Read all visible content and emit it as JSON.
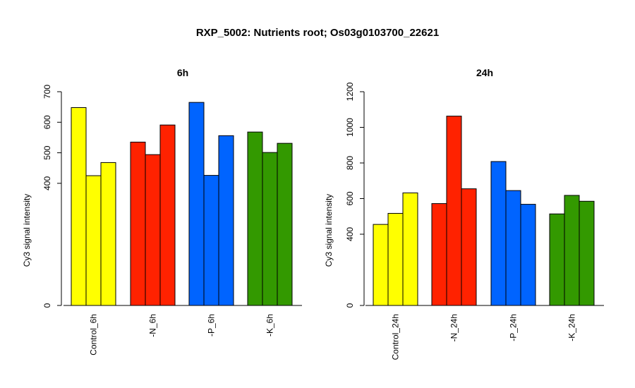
{
  "figure_title": "RXP_5002: Nutrients root; Os03g0103700_22621",
  "colors": {
    "control": "#FFFF00",
    "minus_n": "#FF2200",
    "minus_p": "#0064FF",
    "minus_k": "#339900"
  },
  "chart_data": [
    {
      "type": "bar",
      "title": "6h",
      "ylabel": "Cy3 signal intensity",
      "xlabel": "",
      "ylim": [
        0,
        700
      ],
      "yticks": [
        0,
        400,
        500,
        600,
        700
      ],
      "categories": [
        "Control_6h",
        "-N_6h",
        "-P_6h",
        "-K_6h"
      ],
      "category_colors": [
        "#FFFF00",
        "#FF2200",
        "#0064FF",
        "#339900"
      ],
      "groups": [
        {
          "category": "Control_6h",
          "values": [
            648,
            425,
            468
          ]
        },
        {
          "category": "-N_6h",
          "values": [
            535,
            494,
            591
          ]
        },
        {
          "category": "-P_6h",
          "values": [
            665,
            426,
            556
          ]
        },
        {
          "category": "-K_6h",
          "values": [
            568,
            501,
            531
          ]
        }
      ],
      "grid": false,
      "legend": "none"
    },
    {
      "type": "bar",
      "title": "24h",
      "ylabel": "Cy3 signal intensity",
      "xlabel": "",
      "ylim": [
        0,
        1200
      ],
      "yticks": [
        0,
        400,
        600,
        800,
        1000,
        1200
      ],
      "categories": [
        "Control_24h",
        "-N_24h",
        "-P_24h",
        "-K_24h"
      ],
      "category_colors": [
        "#FFFF00",
        "#FF2200",
        "#0064FF",
        "#339900"
      ],
      "groups": [
        {
          "category": "Control_24h",
          "values": [
            455,
            517,
            632
          ]
        },
        {
          "category": "-N_24h",
          "values": [
            572,
            1063,
            655
          ]
        },
        {
          "category": "-P_24h",
          "values": [
            808,
            645,
            568
          ]
        },
        {
          "category": "-K_24h",
          "values": [
            514,
            618,
            585
          ]
        }
      ],
      "grid": false,
      "legend": "none"
    }
  ]
}
